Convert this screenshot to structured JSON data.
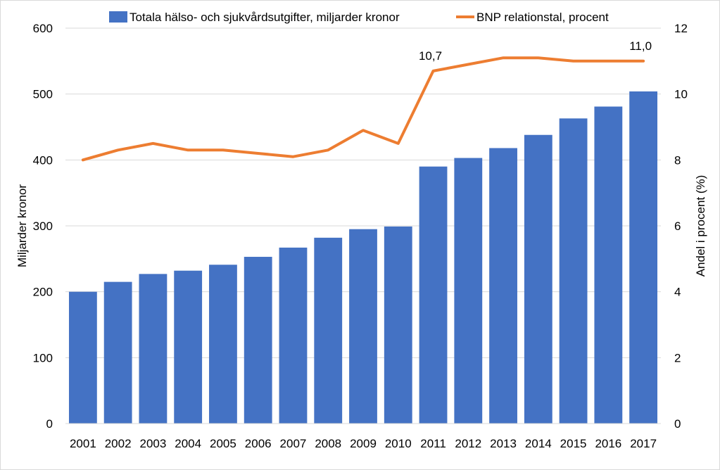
{
  "chart_data": {
    "type": "bar",
    "categories": [
      "2001",
      "2002",
      "2003",
      "2004",
      "2005",
      "2006",
      "2007",
      "2008",
      "2009",
      "2010",
      "2011",
      "2012",
      "2013",
      "2014",
      "2015",
      "2016",
      "2017"
    ],
    "series": [
      {
        "name": "Totala hälso- och sjukvårdsutgifter, miljarder kronor",
        "type": "bar",
        "axis": "left",
        "color": "#4472C4",
        "values": [
          200,
          215,
          227,
          232,
          241,
          253,
          267,
          282,
          295,
          299,
          390,
          403,
          418,
          438,
          463,
          481,
          504
        ]
      },
      {
        "name": "BNP relationstal, procent",
        "type": "line",
        "axis": "right",
        "color": "#ED7D31",
        "values": [
          8.0,
          8.3,
          8.5,
          8.3,
          8.3,
          8.2,
          8.1,
          8.3,
          8.9,
          8.5,
          10.7,
          10.9,
          11.1,
          11.1,
          11.0,
          11.0,
          11.0
        ]
      }
    ],
    "data_labels": [
      {
        "series": 1,
        "index": 10,
        "text": "10,7"
      },
      {
        "series": 1,
        "index": 16,
        "text": "11,0"
      }
    ],
    "ylabel": "Miljarder kronor",
    "y2label": "Andel i procent (%)",
    "ylim": [
      0,
      600
    ],
    "y2lim": [
      0,
      12
    ],
    "yticks": [
      "0",
      "100",
      "200",
      "300",
      "400",
      "500",
      "600"
    ],
    "y2ticks": [
      "0",
      "2",
      "4",
      "6",
      "8",
      "10",
      "12"
    ],
    "grid": true,
    "gridColor": "#D9D9D9",
    "legend": "top"
  }
}
